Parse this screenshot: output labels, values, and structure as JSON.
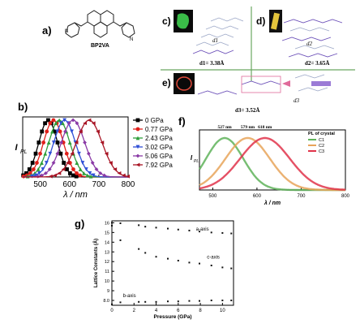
{
  "figure": {
    "panels": [
      {
        "id": "a",
        "label": "a)"
      },
      {
        "id": "b",
        "label": "b)"
      },
      {
        "id": "c",
        "label": "c)"
      },
      {
        "id": "d",
        "label": "d)"
      },
      {
        "id": "e",
        "label": "e)"
      },
      {
        "id": "f",
        "label": "f)"
      },
      {
        "id": "g",
        "label": "g)"
      }
    ],
    "molecule_name": "BP2VA",
    "crystal": {
      "d1_label": "d1",
      "d1_value": "d1= 3.38Å",
      "d2_label": "d2",
      "d2_value": "d2= 3.65Å",
      "d3_label": "d3",
      "d3_value": "d3= 3.52Å"
    }
  },
  "chart_data": [
    {
      "id": "b",
      "type": "line",
      "title": "",
      "xlabel": "λ / nm",
      "ylabel": "I_PL",
      "ylabel_main": "I",
      "ylabel_sub": "PL",
      "xlim": [
        440,
        800
      ],
      "x_ticks": [
        500,
        600,
        700,
        800
      ],
      "legend_position": "right",
      "series": [
        {
          "name": "0 GPa",
          "color": "#000000",
          "marker": "square",
          "peak": 527,
          "width": 32
        },
        {
          "name": "0.77 GPa",
          "color": "#e0201b",
          "marker": "circle",
          "peak": 545,
          "width": 34
        },
        {
          "name": "2.43 GPa",
          "color": "#2e9d3a",
          "marker": "triangle",
          "peak": 565,
          "width": 36
        },
        {
          "name": "3.02 GPa",
          "color": "#2f4fd6",
          "marker": "triangle-down",
          "peak": 583,
          "width": 37
        },
        {
          "name": "5.06 GPa",
          "color": "#8a3aa6",
          "marker": "diamond",
          "peak": 612,
          "width": 40
        },
        {
          "name": "7.92 GPa",
          "color": "#a81424",
          "marker": "triangle-left",
          "peak": 667,
          "width": 44
        }
      ]
    },
    {
      "id": "f",
      "type": "line",
      "title": "PL of crystal",
      "xlabel": "λ / nm",
      "ylabel": "I_PL",
      "ylabel_main": "I",
      "ylabel_sub": "PL",
      "xlim": [
        470,
        800
      ],
      "x_ticks": [
        500,
        600,
        700,
        800
      ],
      "legend_position": "top-right",
      "peak_annotations": [
        "527 nm",
        "579 nm",
        "618 nm"
      ],
      "series": [
        {
          "name": "C1",
          "color": "#5fb35a",
          "peak": 527,
          "width": 42
        },
        {
          "name": "C2",
          "color": "#e8a45a",
          "peak": 579,
          "width": 50
        },
        {
          "name": "C3",
          "color": "#e0334a",
          "peak": 618,
          "width": 56
        }
      ]
    },
    {
      "id": "g",
      "type": "scatter",
      "title": "",
      "xlabel": "Pressure (GPa)",
      "ylabel": "Lattice Constants (Å)",
      "xlim": [
        0,
        11
      ],
      "ylim": [
        7.5,
        16.2
      ],
      "x_ticks": [
        0,
        2,
        4,
        6,
        8,
        10
      ],
      "y_ticks": [
        7.5,
        8.0,
        9,
        10,
        11,
        12,
        13,
        14,
        15,
        16
      ],
      "y_tick_labels": [
        "",
        "8.0",
        "9",
        "10",
        "11",
        "12",
        "13",
        "14",
        "15",
        "16"
      ],
      "series": [
        {
          "name": "a-axis",
          "x": [
            0,
            0.77,
            2.43,
            3.02,
            4.0,
            5.06,
            6.0,
            7.0,
            7.92,
            9.0,
            10.0,
            10.8
          ],
          "y": [
            16.0,
            15.95,
            15.75,
            15.6,
            15.5,
            15.4,
            15.3,
            15.2,
            15.1,
            15.0,
            14.95,
            14.9
          ]
        },
        {
          "name": "c-axis",
          "x": [
            0,
            0.77,
            2.43,
            3.02,
            4.0,
            5.06,
            6.0,
            7.0,
            7.92,
            9.0,
            10.0,
            10.8
          ],
          "y": [
            15.7,
            14.2,
            13.3,
            12.9,
            12.5,
            12.3,
            12.1,
            11.9,
            11.8,
            11.6,
            11.4,
            11.3
          ]
        },
        {
          "name": "b-axis",
          "x": [
            0,
            0.77,
            2.43,
            3.02,
            4.0,
            5.06,
            6.0,
            7.0,
            7.92,
            9.0,
            10.0,
            10.8
          ],
          "y": [
            7.6,
            7.8,
            7.85,
            7.85,
            7.85,
            7.9,
            7.9,
            7.95,
            7.95,
            8.0,
            8.0,
            8.0
          ]
        }
      ]
    }
  ]
}
